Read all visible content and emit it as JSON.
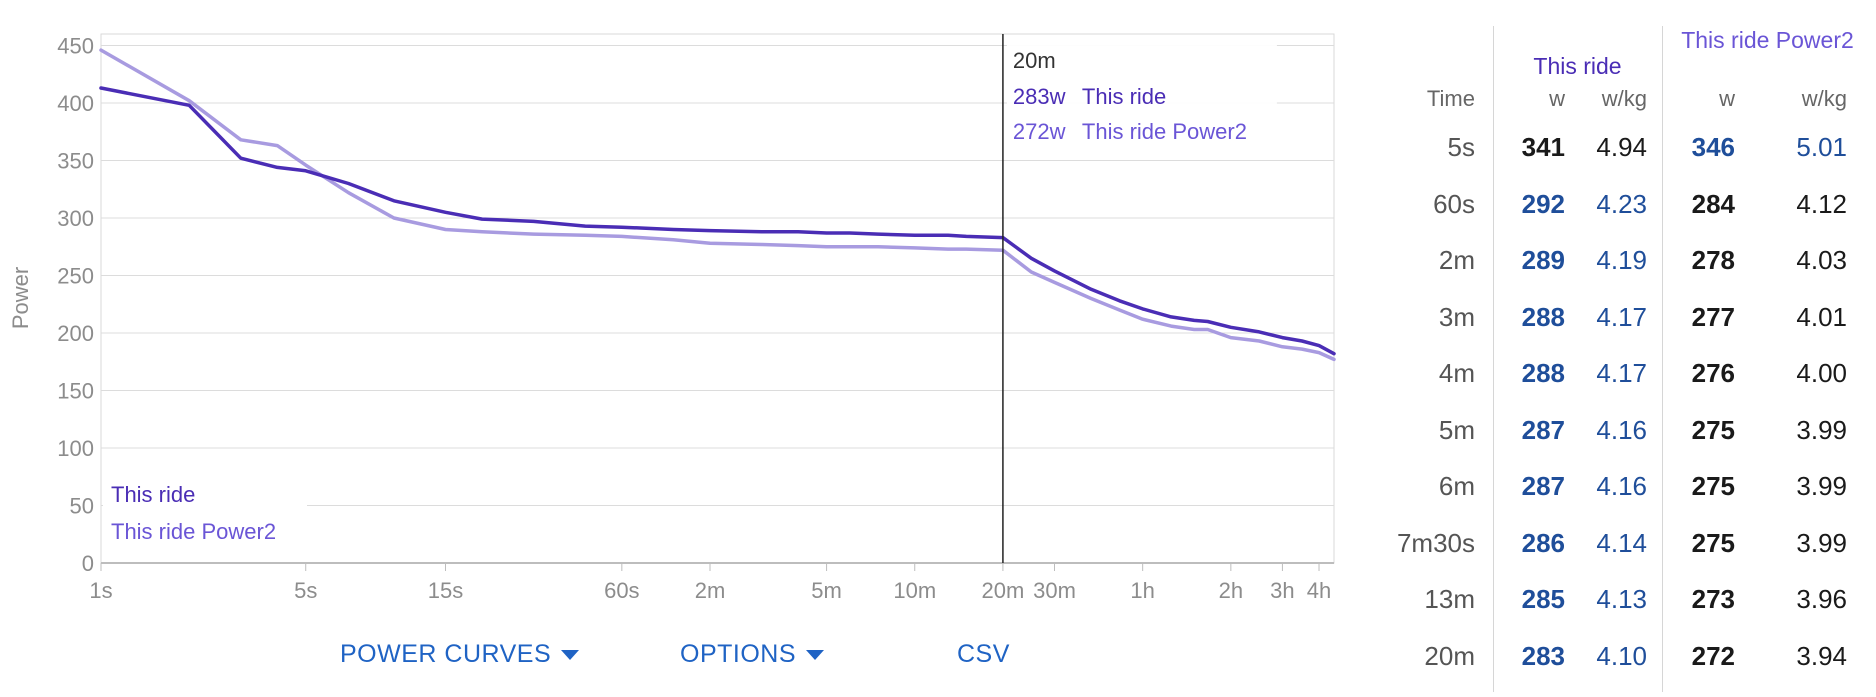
{
  "chart_data": {
    "type": "line",
    "ylabel": "Power",
    "ylim": [
      0,
      460
    ],
    "y_ticks": [
      0,
      50,
      100,
      150,
      200,
      250,
      300,
      350,
      400,
      450
    ],
    "x_scale": "log",
    "x_unit": "seconds",
    "x_ticks": [
      {
        "label": "1s",
        "seconds": 1
      },
      {
        "label": "5s",
        "seconds": 5
      },
      {
        "label": "15s",
        "seconds": 15
      },
      {
        "label": "60s",
        "seconds": 60
      },
      {
        "label": "2m",
        "seconds": 120
      },
      {
        "label": "5m",
        "seconds": 300
      },
      {
        "label": "10m",
        "seconds": 600
      },
      {
        "label": "20m",
        "seconds": 1200
      },
      {
        "label": "30m",
        "seconds": 1800
      },
      {
        "label": "1h",
        "seconds": 3600
      },
      {
        "label": "2h",
        "seconds": 7200
      },
      {
        "label": "3h",
        "seconds": 10800
      },
      {
        "label": "4h",
        "seconds": 14400
      }
    ],
    "xlim": [
      1,
      16200
    ],
    "grid": true,
    "legend_position": "bottom-left",
    "series": [
      {
        "name": "This ride",
        "color": "#4a2db5",
        "points": [
          [
            1,
            413
          ],
          [
            2,
            398
          ],
          [
            3,
            352
          ],
          [
            4,
            344
          ],
          [
            5,
            341
          ],
          [
            7,
            330
          ],
          [
            10,
            315
          ],
          [
            15,
            305
          ],
          [
            20,
            299
          ],
          [
            30,
            297
          ],
          [
            45,
            293
          ],
          [
            60,
            292
          ],
          [
            90,
            290
          ],
          [
            120,
            289
          ],
          [
            180,
            288
          ],
          [
            240,
            288
          ],
          [
            300,
            287
          ],
          [
            360,
            287
          ],
          [
            450,
            286
          ],
          [
            600,
            285
          ],
          [
            780,
            285
          ],
          [
            900,
            284
          ],
          [
            1200,
            283
          ],
          [
            1500,
            265
          ],
          [
            1800,
            254
          ],
          [
            2400,
            238
          ],
          [
            3000,
            228
          ],
          [
            3600,
            221
          ],
          [
            4500,
            214
          ],
          [
            5400,
            211
          ],
          [
            6000,
            210
          ],
          [
            7200,
            205
          ],
          [
            9000,
            201
          ],
          [
            10800,
            196
          ],
          [
            12600,
            193
          ],
          [
            14400,
            189
          ],
          [
            16200,
            182
          ]
        ]
      },
      {
        "name": "This ride Power2",
        "color": "#a89be0",
        "points": [
          [
            1,
            446
          ],
          [
            2,
            402
          ],
          [
            3,
            368
          ],
          [
            4,
            363
          ],
          [
            5,
            346
          ],
          [
            7,
            322
          ],
          [
            10,
            300
          ],
          [
            15,
            290
          ],
          [
            20,
            288
          ],
          [
            30,
            286
          ],
          [
            45,
            285
          ],
          [
            60,
            284
          ],
          [
            90,
            281
          ],
          [
            120,
            278
          ],
          [
            180,
            277
          ],
          [
            240,
            276
          ],
          [
            300,
            275
          ],
          [
            360,
            275
          ],
          [
            450,
            275
          ],
          [
            600,
            274
          ],
          [
            780,
            273
          ],
          [
            900,
            273
          ],
          [
            1200,
            272
          ],
          [
            1500,
            253
          ],
          [
            1800,
            244
          ],
          [
            2400,
            230
          ],
          [
            3000,
            220
          ],
          [
            3600,
            212
          ],
          [
            4500,
            206
          ],
          [
            5400,
            203
          ],
          [
            6000,
            203
          ],
          [
            7200,
            196
          ],
          [
            9000,
            193
          ],
          [
            10800,
            188
          ],
          [
            12600,
            186
          ],
          [
            14400,
            183
          ],
          [
            16200,
            177
          ]
        ]
      }
    ],
    "hover": {
      "x_seconds": 1200,
      "title": "20m",
      "entries": [
        {
          "value": "283w",
          "name": "This ride",
          "color": "#4a2db5"
        },
        {
          "value": "272w",
          "name": "This ride Power2",
          "color": "#6a55d6"
        }
      ]
    },
    "legend": [
      {
        "name": "This ride",
        "color": "#4a2db5"
      },
      {
        "name": "This ride Power2",
        "color": "#6a55d6"
      }
    ]
  },
  "buttons": {
    "power_curves": "POWER CURVES",
    "options": "OPTIONS",
    "csv": "CSV"
  },
  "table": {
    "series1_header": "This ride",
    "series1_color": "#4a2db5",
    "series2_header": "This ride Power2",
    "series2_color": "#6a55d6",
    "time_header": "Time",
    "w_header": "w",
    "wkg_header": "w/kg",
    "rows": [
      {
        "time": "5s",
        "w1": "341",
        "wkg1": "4.94",
        "w2": "346",
        "wkg2": "5.01",
        "best": 1
      },
      {
        "time": "60s",
        "w1": "292",
        "wkg1": "4.23",
        "w2": "284",
        "wkg2": "4.12",
        "best": 0
      },
      {
        "time": "2m",
        "w1": "289",
        "wkg1": "4.19",
        "w2": "278",
        "wkg2": "4.03",
        "best": 0
      },
      {
        "time": "3m",
        "w1": "288",
        "wkg1": "4.17",
        "w2": "277",
        "wkg2": "4.01",
        "best": 0
      },
      {
        "time": "4m",
        "w1": "288",
        "wkg1": "4.17",
        "w2": "276",
        "wkg2": "4.00",
        "best": 0
      },
      {
        "time": "5m",
        "w1": "287",
        "wkg1": "4.16",
        "w2": "275",
        "wkg2": "3.99",
        "best": 0
      },
      {
        "time": "6m",
        "w1": "287",
        "wkg1": "4.16",
        "w2": "275",
        "wkg2": "3.99",
        "best": 0
      },
      {
        "time": "7m30s",
        "w1": "286",
        "wkg1": "4.14",
        "w2": "275",
        "wkg2": "3.99",
        "best": 0
      },
      {
        "time": "13m",
        "w1": "285",
        "wkg1": "4.13",
        "w2": "273",
        "wkg2": "3.96",
        "best": 0
      },
      {
        "time": "20m",
        "w1": "283",
        "wkg1": "4.10",
        "w2": "272",
        "wkg2": "3.94",
        "best": 0
      }
    ]
  }
}
